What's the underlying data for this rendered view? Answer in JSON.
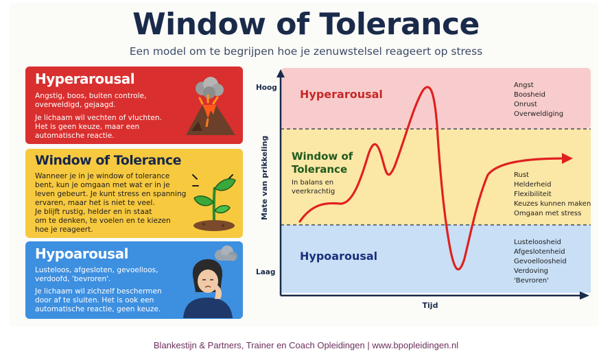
{
  "header": {
    "title": "Window of Tolerance",
    "subtitle": "Een model om te begrijpen hoe je zenuwstelsel reageert op stress"
  },
  "panels": {
    "hyper": {
      "title": "Hyperarousal",
      "line1": "Angstig, boos, buiten controle,",
      "line2": "overweldigd, gejaagd.",
      "line3": "Je lichaam wil vechten of vluchten.",
      "line4": "Het is geen keuze, maar een",
      "line5": "automatische reactie.",
      "icon": "volcano-icon",
      "color": "#d92f2f"
    },
    "window": {
      "title": "Window of Tolerance",
      "line1": "Wanneer je in je window of tolerance",
      "line2": "bent, kun je omgaan met wat er in je",
      "line3": "leven gebeurt. Je kunt stress en spanning",
      "line4": "ervaren, maar het is niet te veel.",
      "line5": "Je blijft rustig, helder en in staat",
      "line6": "om te denken, te voelen en te kiezen",
      "line7": "hoe je reageert.",
      "icon": "plant-sprout-icon",
      "color": "#f7c93f"
    },
    "hypo": {
      "title": "Hypoarousal",
      "line1": "Lusteloos, afgesloten, gevoelloos,",
      "line2": "verdoofd, 'bevroren'.",
      "line3": "Je lichaam wil zichzelf beschermen",
      "line4": "door af te sluiten. Het is ook een",
      "line5": "automatische reactie, geen keuze.",
      "icon": "tired-person-cloud-icon",
      "color": "#3d8fe0"
    }
  },
  "chart": {
    "y_axis_label": "Mate van prikkeling",
    "y_high": "Hoog",
    "y_low": "Laag",
    "x_axis_label": "Tijd",
    "zone_hyper": {
      "label": "Hyperarousal",
      "items": [
        "Angst",
        "Boosheid",
        "Onrust",
        "Overweldiging"
      ],
      "color": "#f8cccc"
    },
    "zone_window": {
      "label_line1": "Window of",
      "label_line2": "Tolerance",
      "sub_line1": "In balans en",
      "sub_line2": "veerkrachtig",
      "items": [
        "Rust",
        "Helderheid",
        "Flexibiliteit",
        "Keuzes kunnen maken",
        "Omgaan met stress"
      ],
      "color": "#fbe7a6"
    },
    "zone_hypo": {
      "label": "Hypoarousal",
      "items": [
        "Lusteloosheid",
        "Afgeslotenheid",
        "Gevoelloosheid",
        "Verdoving",
        "'Bevroren'"
      ],
      "color": "#c8dff5"
    },
    "curve_color": "#e02020"
  },
  "footer": {
    "text": "Blankestijn & Partners, Trainer en Coach Opleidingen | www.bpopleidingen.nl"
  }
}
